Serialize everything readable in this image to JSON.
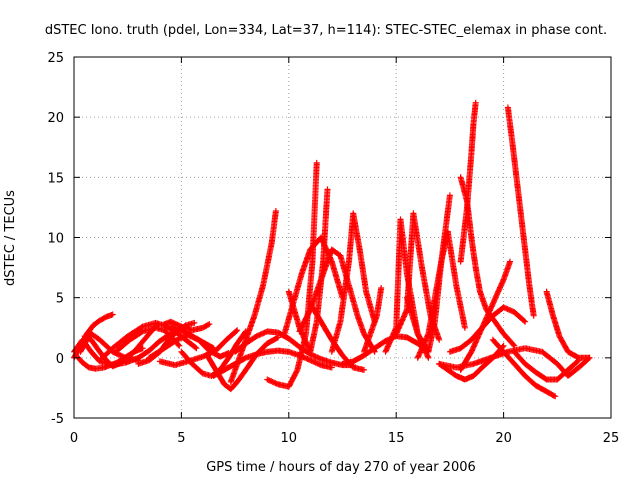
{
  "chart_data": {
    "type": "scatter",
    "title": "dSTEC Iono. truth (pdel, Lon=334, Lat=37, h=114): STEC-STEC_elemax in phase cont.",
    "xlabel": "GPS time / hours of day 270 of year 2006",
    "ylabel": "dSTEC  / TECUs",
    "xlim": [
      0,
      25
    ],
    "ylim": [
      -5,
      25
    ],
    "xticks": [
      0,
      5,
      10,
      15,
      20,
      25
    ],
    "yticks": [
      -5,
      0,
      5,
      10,
      15,
      20,
      25
    ],
    "xtick_labels": [
      "0",
      "5",
      "10",
      "15",
      "20",
      "25"
    ],
    "ytick_labels": [
      "-5",
      "0",
      "5",
      "10",
      "15",
      "20",
      "25"
    ],
    "grid": true,
    "marker": "+",
    "color": "#ff0000",
    "series": [
      {
        "x": [
          0.0,
          0.3,
          0.6,
          0.9,
          1.2,
          1.5,
          1.8
        ],
        "y": [
          0.0,
          1.0,
          2.0,
          2.7,
          3.1,
          3.4,
          3.6
        ]
      },
      {
        "x": [
          0.0,
          0.4,
          0.8,
          1.2,
          1.8,
          2.4,
          3.0,
          3.5,
          4.0,
          4.5,
          5.0
        ],
        "y": [
          0.5,
          1.5,
          0.5,
          -0.3,
          -0.6,
          -0.4,
          0.0,
          0.6,
          1.4,
          2.0,
          2.5
        ]
      },
      {
        "x": [
          0.3,
          0.5,
          0.8,
          1.2,
          1.8,
          2.4,
          3.0
        ],
        "y": [
          0.5,
          1.2,
          2.0,
          1.5,
          0.5,
          0.0,
          -0.2
        ]
      },
      {
        "x": [
          0.5,
          0.8,
          1.2,
          1.5,
          1.8,
          2.2,
          2.8,
          3.2
        ],
        "y": [
          1.8,
          1.5,
          0.5,
          -0.2,
          -0.7,
          -0.4,
          0.5,
          0.8
        ]
      },
      {
        "x": [
          0.2,
          0.4,
          0.7,
          1.0,
          1.4,
          2.0,
          2.8,
          3.5,
          3.9
        ],
        "y": [
          0.0,
          -0.4,
          -0.8,
          -0.9,
          -0.8,
          -0.4,
          0.5,
          2.0,
          2.8
        ]
      },
      {
        "x": [
          1.2,
          1.8,
          2.5,
          3.2,
          3.8,
          4.2,
          4.7,
          5.2,
          5.7
        ],
        "y": [
          -0.2,
          0.8,
          1.8,
          2.6,
          2.9,
          2.7,
          2.2,
          1.5,
          0.8
        ]
      },
      {
        "x": [
          2.0,
          2.6,
          3.2,
          3.8,
          4.2,
          4.5,
          4.9
        ],
        "y": [
          0.6,
          1.5,
          2.2,
          2.5,
          2.3,
          1.8,
          1.0
        ]
      },
      {
        "x": [
          3.0,
          3.5,
          4.0,
          4.4,
          4.8,
          5.2,
          5.6
        ],
        "y": [
          -0.5,
          -0.2,
          0.5,
          1.5,
          2.2,
          2.7,
          2.9
        ]
      },
      {
        "x": [
          4.2,
          4.5,
          5.0,
          5.5,
          6.0,
          6.3
        ],
        "y": [
          2.8,
          3.0,
          2.6,
          2.3,
          2.5,
          2.8
        ]
      },
      {
        "x": [
          4.5,
          5.0,
          5.5,
          6.0,
          6.5
        ],
        "y": [
          2.6,
          2.3,
          1.8,
          1.3,
          0.8
        ]
      },
      {
        "x": [
          3.5,
          4.2,
          4.8,
          5.3,
          5.8,
          6.3,
          6.8,
          7.2
        ],
        "y": [
          0.0,
          0.8,
          1.5,
          1.9,
          1.5,
          0.6,
          0.1,
          0.4
        ]
      },
      {
        "x": [
          5.0,
          5.5,
          6.0,
          6.4,
          6.8,
          7.2,
          7.6,
          8.0
        ],
        "y": [
          0.5,
          -0.5,
          -1.3,
          -1.5,
          -1.0,
          0.0,
          1.2,
          2.2
        ]
      },
      {
        "x": [
          4.0,
          4.7,
          5.3,
          6.0,
          6.6,
          7.1,
          7.6
        ],
        "y": [
          -0.3,
          -0.6,
          -0.3,
          0.1,
          0.6,
          1.5,
          2.3
        ]
      },
      {
        "x": [
          6.2,
          6.6,
          7.0,
          7.3,
          7.6,
          8.0,
          8.5,
          9.0,
          9.5
        ],
        "y": [
          0.2,
          -1.0,
          -2.2,
          -2.6,
          -2.0,
          -1.0,
          0.3,
          1.2,
          1.7
        ]
      },
      {
        "x": [
          7.3,
          7.6,
          8.0,
          8.4,
          8.8,
          9.2,
          9.4
        ],
        "y": [
          -2.0,
          -0.5,
          1.5,
          3.5,
          6.0,
          9.5,
          12.2
        ]
      },
      {
        "x": [
          6.5,
          7.0,
          7.5,
          8.0,
          8.5,
          9.0,
          9.5,
          10.0,
          10.5,
          11.0,
          11.5,
          12.0
        ],
        "y": [
          -1.5,
          -1.0,
          -0.5,
          0.0,
          0.3,
          0.5,
          0.6,
          0.5,
          0.2,
          -0.2,
          -0.6,
          -0.8
        ]
      },
      {
        "x": [
          7.5,
          8.0,
          8.5,
          9.0,
          9.5,
          10.0,
          10.5,
          11.0,
          11.5,
          12.0,
          12.5,
          13.0
        ],
        "y": [
          0.5,
          1.2,
          1.8,
          2.2,
          2.1,
          1.6,
          0.9,
          0.3,
          -0.1,
          -0.4,
          -0.6,
          -0.6
        ]
      },
      {
        "x": [
          9.0,
          9.5,
          10.0,
          10.4,
          10.8,
          11.1,
          11.3
        ],
        "y": [
          -1.8,
          -2.2,
          -2.4,
          -1.0,
          2.0,
          8.0,
          16.2
        ]
      },
      {
        "x": [
          10.0,
          10.5,
          11.0,
          11.3,
          11.6,
          11.8
        ],
        "y": [
          5.5,
          2.5,
          0.5,
          3.0,
          8.0,
          14.0
        ]
      },
      {
        "x": [
          9.8,
          10.2,
          10.6,
          11.0,
          11.5,
          12.0,
          12.5
        ],
        "y": [
          2.0,
          4.5,
          7.0,
          9.0,
          10.0,
          8.0,
          5.0
        ]
      },
      {
        "x": [
          11.0,
          11.5,
          12.0,
          12.5,
          13.0,
          13.5
        ],
        "y": [
          4.5,
          3.0,
          1.5,
          0.2,
          -0.8,
          -1.0
        ]
      },
      {
        "x": [
          10.5,
          11.0,
          11.6,
          12.0,
          12.4,
          12.8,
          13.2,
          13.5,
          14.0
        ],
        "y": [
          2.2,
          4.0,
          7.0,
          9.0,
          8.5,
          6.0,
          3.5,
          2.0,
          0.5
        ]
      },
      {
        "x": [
          12.0,
          12.4,
          12.8,
          13.0,
          13.3,
          13.6,
          14.0
        ],
        "y": [
          0.5,
          3.0,
          8.0,
          12.0,
          9.0,
          5.5,
          3.0
        ]
      },
      {
        "x": [
          13.5,
          13.8,
          14.1,
          14.3
        ],
        "y": [
          0.5,
          2.0,
          3.5,
          5.8
        ]
      },
      {
        "x": [
          12.5,
          13.0,
          13.5,
          14.0,
          14.5,
          15.0,
          15.5,
          16.0,
          16.5
        ],
        "y": [
          -0.5,
          -0.3,
          0.2,
          0.8,
          1.4,
          1.8,
          1.7,
          1.2,
          0.5
        ]
      },
      {
        "x": [
          14.5,
          15.0,
          15.2,
          15.5,
          16.0,
          16.5
        ],
        "y": [
          0.5,
          2.5,
          11.5,
          7.0,
          2.0,
          0.0
        ]
      },
      {
        "x": [
          15.0,
          15.5,
          15.8,
          16.2,
          16.6,
          17.0
        ],
        "y": [
          2.0,
          4.0,
          12.0,
          7.5,
          3.5,
          1.5
        ]
      },
      {
        "x": [
          15.5,
          16.0,
          16.5,
          16.8,
          17.1,
          17.5
        ],
        "y": [
          5.0,
          2.0,
          0.5,
          3.0,
          8.0,
          13.5
        ]
      },
      {
        "x": [
          16.0,
          16.5,
          16.8,
          17.1,
          17.4,
          17.8,
          18.2
        ],
        "y": [
          0.0,
          2.0,
          5.0,
          8.0,
          10.5,
          6.0,
          2.5
        ]
      },
      {
        "x": [
          17.0,
          17.4,
          17.8,
          18.2,
          18.6,
          19.0,
          19.5,
          20.0
        ],
        "y": [
          -0.5,
          -1.0,
          -1.5,
          -1.8,
          -1.5,
          -0.8,
          0.0,
          1.0
        ]
      },
      {
        "x": [
          18.0,
          18.3,
          18.5,
          18.7,
          18.9,
          19.2,
          19.6,
          20.0,
          20.5
        ],
        "y": [
          15.0,
          13.0,
          10.0,
          7.5,
          5.5,
          4.0,
          3.0,
          2.0,
          1.0
        ]
      },
      {
        "x": [
          18.0,
          18.3,
          18.5,
          18.6,
          18.7
        ],
        "y": [
          8.0,
          12.5,
          17.0,
          19.5,
          21.2
        ]
      },
      {
        "x": [
          17.5,
          18.0,
          18.5,
          19.0,
          19.5,
          20.0,
          20.5,
          21.0
        ],
        "y": [
          0.5,
          0.8,
          1.5,
          2.5,
          3.5,
          4.2,
          3.8,
          3.0
        ]
      },
      {
        "x": [
          18.0,
          18.5,
          19.0,
          19.5,
          20.0,
          20.3
        ],
        "y": [
          -1.0,
          0.5,
          2.5,
          4.5,
          6.5,
          8.0
        ]
      },
      {
        "x": [
          20.2,
          20.4,
          20.6,
          20.8,
          21.0,
          21.2,
          21.4
        ],
        "y": [
          20.8,
          18.0,
          15.0,
          12.0,
          9.0,
          6.0,
          3.5
        ]
      },
      {
        "x": [
          17.0,
          17.8,
          18.6,
          19.4,
          20.2,
          21.0,
          21.8,
          22.5,
          23.0,
          23.5,
          24.0
        ],
        "y": [
          -0.5,
          -0.8,
          -0.5,
          0.0,
          0.5,
          0.8,
          0.5,
          -0.5,
          -1.5,
          -0.8,
          0.0
        ]
      },
      {
        "x": [
          19.5,
          20.0,
          20.5,
          21.0,
          21.5,
          22.0,
          22.4
        ],
        "y": [
          1.5,
          0.5,
          -0.5,
          -1.5,
          -2.3,
          -2.8,
          -3.2
        ]
      },
      {
        "x": [
          22.0,
          22.3,
          22.6,
          23.0,
          23.5,
          24.0
        ],
        "y": [
          5.5,
          3.5,
          1.8,
          0.5,
          0.0,
          0.0
        ]
      },
      {
        "x": [
          20.5,
          21.0,
          21.5,
          22.0,
          22.5,
          23.0,
          23.5
        ],
        "y": [
          0.5,
          -0.5,
          -1.2,
          -1.8,
          -1.8,
          -1.0,
          -0.2
        ]
      }
    ]
  }
}
